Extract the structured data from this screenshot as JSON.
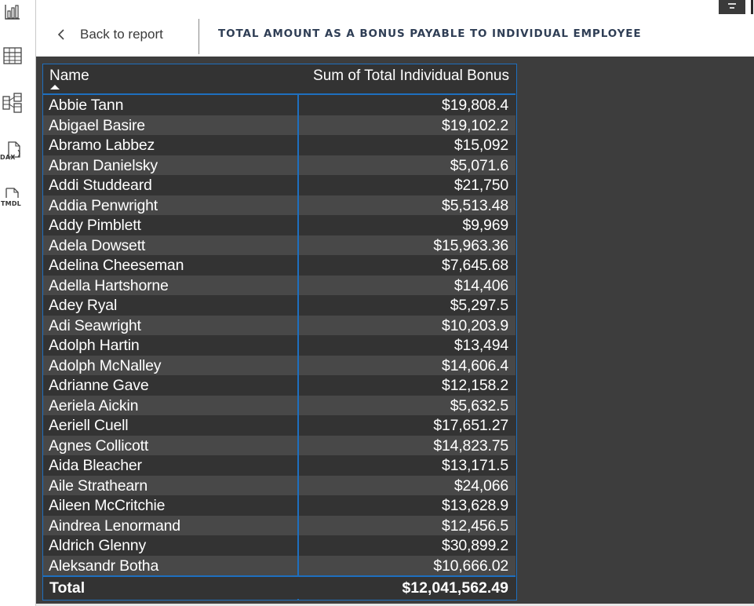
{
  "rail": {
    "items": [
      {
        "icon": "report-view-icon"
      },
      {
        "icon": "table-view-icon"
      },
      {
        "icon": "model-view-icon"
      },
      {
        "icon": "dax-query-icon",
        "label": "DAX"
      },
      {
        "icon": "tmdl-view-icon",
        "label": "TMDL"
      }
    ]
  },
  "header": {
    "back_label": "Back to report",
    "title": "TOTAL AMOUNT AS A BONUS PAYABLE TO INDIVIDUAL EMPLOYEE"
  },
  "colors": {
    "canvas": "#3d3d3d",
    "accent_border": "#1e6fbf",
    "row_alt": "#484848",
    "row_base": "#333333",
    "title": "#2f3e55"
  },
  "table": {
    "columns": [
      "Name",
      "Sum of Total Individual Bonus"
    ],
    "sort": {
      "column": "Name",
      "direction": "ascending"
    },
    "rows": [
      {
        "name": "Abbie Tann",
        "value": "$19,808.4"
      },
      {
        "name": "Abigael Basire",
        "value": "$19,102.2"
      },
      {
        "name": "Abramo Labbez",
        "value": "$15,092"
      },
      {
        "name": "Abran Danielsky",
        "value": "$5,071.6"
      },
      {
        "name": "Addi Studdeard",
        "value": "$21,750"
      },
      {
        "name": "Addia Penwright",
        "value": "$5,513.48"
      },
      {
        "name": "Addy Pimblett",
        "value": "$9,969"
      },
      {
        "name": "Adela Dowsett",
        "value": "$15,963.36"
      },
      {
        "name": "Adelina Cheeseman",
        "value": "$7,645.68"
      },
      {
        "name": "Adella Hartshorne",
        "value": "$14,406"
      },
      {
        "name": "Adey Ryal",
        "value": "$5,297.5"
      },
      {
        "name": "Adi Seawright",
        "value": "$10,203.9"
      },
      {
        "name": "Adolph Hartin",
        "value": "$13,494"
      },
      {
        "name": "Adolph McNalley",
        "value": "$14,606.4"
      },
      {
        "name": "Adrianne Gave",
        "value": "$12,158.2"
      },
      {
        "name": "Aeriela Aickin",
        "value": "$5,632.5"
      },
      {
        "name": "Aeriell Cuell",
        "value": "$17,651.27"
      },
      {
        "name": "Agnes Collicott",
        "value": "$14,823.75"
      },
      {
        "name": "Aida Bleacher",
        "value": "$13,171.5"
      },
      {
        "name": "Aile Strathearn",
        "value": "$24,066"
      },
      {
        "name": "Aileen McCritchie",
        "value": "$13,628.9"
      },
      {
        "name": "Aindrea Lenormand",
        "value": "$12,456.5"
      },
      {
        "name": "Aldrich Glenny",
        "value": "$30,899.2"
      },
      {
        "name": "Aleksandr Botha",
        "value": "$10,666.02"
      }
    ],
    "total_label": "Total",
    "total_value": "$12,041,562.49"
  }
}
